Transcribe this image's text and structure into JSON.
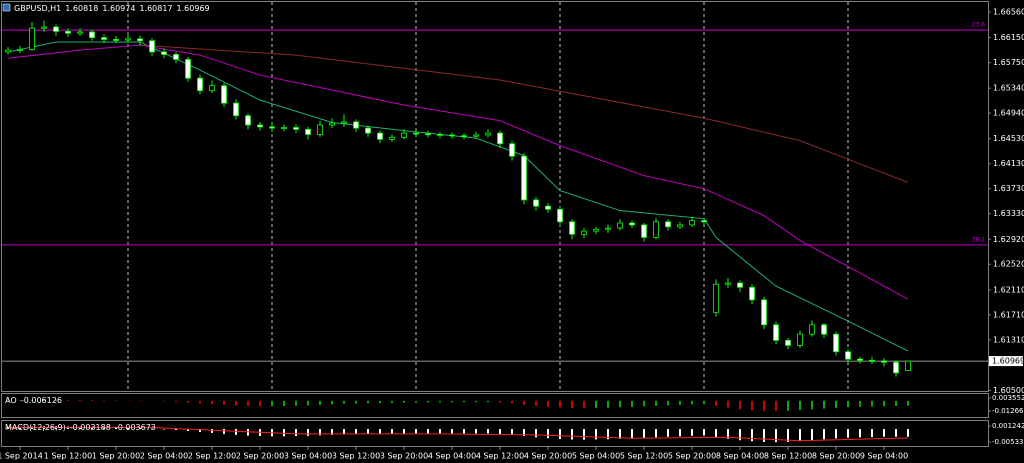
{
  "chart_data": {
    "type": "candlestick",
    "symbol": "GBPUSD,H1",
    "open": [
      1.6592,
      1.6595,
      1.6596,
      1.663,
      1.6632,
      1.6625,
      1.6622,
      1.6624,
      1.6615,
      1.6612,
      1.6611,
      1.6613,
      1.661,
      1.6592,
      1.6588,
      1.658,
      1.655,
      1.653,
      1.6538,
      1.651,
      1.649,
      1.6475,
      1.6472,
      1.647,
      1.6471,
      1.6468,
      1.646,
      1.6475,
      1.6478,
      1.648,
      1.647,
      1.6462,
      1.6452,
      1.6455,
      1.6462,
      1.6461,
      1.646,
      1.6459,
      1.6458,
      1.6457,
      1.6459,
      1.6462,
      1.6445,
      1.6425,
      1.6355,
      1.6345,
      1.634,
      1.632,
      1.63,
      1.6305,
      1.6308,
      1.631,
      1.6318,
      1.6315,
      1.6295,
      1.632,
      1.6312,
      1.6315,
      1.6322,
      1.6175,
      1.622,
      1.6222,
      1.6215,
      1.6195,
      1.6155,
      1.613,
      1.6122,
      1.614,
      1.6155,
      1.614,
      1.6112,
      1.61,
      1.6098,
      1.6097,
      1.6095,
      1.60818
    ],
    "high": [
      1.66,
      1.6602,
      1.664,
      1.6642,
      1.6636,
      1.663,
      1.663,
      1.6628,
      1.662,
      1.6618,
      1.662,
      1.6618,
      1.6614,
      1.6598,
      1.6592,
      1.6584,
      1.6556,
      1.6546,
      1.6542,
      1.6516,
      1.6494,
      1.648,
      1.6478,
      1.6476,
      1.6476,
      1.6472,
      1.6482,
      1.6486,
      1.6492,
      1.6484,
      1.6474,
      1.6466,
      1.646,
      1.6468,
      1.6466,
      1.6466,
      1.6464,
      1.6463,
      1.6462,
      1.6464,
      1.6468,
      1.6466,
      1.645,
      1.643,
      1.636,
      1.635,
      1.6344,
      1.6324,
      1.631,
      1.6312,
      1.6316,
      1.6324,
      1.6322,
      1.6318,
      1.6326,
      1.6324,
      1.632,
      1.6328,
      1.6326,
      1.6228,
      1.623,
      1.6226,
      1.622,
      1.62,
      1.616,
      1.6134,
      1.6146,
      1.6162,
      1.6158,
      1.6144,
      1.6116,
      1.6104,
      1.6104,
      1.6102,
      1.6098,
      1.60974
    ],
    "low": [
      1.6588,
      1.659,
      1.6594,
      1.6624,
      1.6618,
      1.6616,
      1.6618,
      1.661,
      1.6606,
      1.6606,
      1.6607,
      1.6602,
      1.6586,
      1.6582,
      1.6574,
      1.6544,
      1.6524,
      1.6526,
      1.6504,
      1.6484,
      1.6468,
      1.6466,
      1.6464,
      1.6465,
      1.6462,
      1.6452,
      1.6456,
      1.647,
      1.6472,
      1.6464,
      1.6456,
      1.6446,
      1.6448,
      1.6452,
      1.6456,
      1.6455,
      1.6454,
      1.6453,
      1.6452,
      1.6453,
      1.6455,
      1.6438,
      1.6418,
      1.6348,
      1.6338,
      1.6334,
      1.6314,
      1.6292,
      1.6294,
      1.63,
      1.6302,
      1.6306,
      1.631,
      1.6288,
      1.6292,
      1.6306,
      1.6308,
      1.6312,
      1.6316,
      1.6168,
      1.6214,
      1.6208,
      1.6188,
      1.6148,
      1.6124,
      1.6116,
      1.6118,
      1.6136,
      1.6134,
      1.6106,
      1.6094,
      1.6093,
      1.6092,
      1.6088,
      1.6072,
      1.60817
    ],
    "close": [
      1.6595,
      1.6596,
      1.663,
      1.6632,
      1.6625,
      1.6622,
      1.6624,
      1.6615,
      1.6612,
      1.6611,
      1.6613,
      1.661,
      1.6592,
      1.6588,
      1.658,
      1.655,
      1.653,
      1.6538,
      1.651,
      1.649,
      1.6475,
      1.6472,
      1.647,
      1.6471,
      1.6468,
      1.646,
      1.6475,
      1.6478,
      1.648,
      1.647,
      1.6462,
      1.6452,
      1.6455,
      1.6462,
      1.6461,
      1.646,
      1.6459,
      1.6458,
      1.6457,
      1.6459,
      1.6462,
      1.6445,
      1.6425,
      1.6355,
      1.6345,
      1.634,
      1.632,
      1.63,
      1.6305,
      1.6308,
      1.631,
      1.6318,
      1.6315,
      1.6295,
      1.632,
      1.6312,
      1.6315,
      1.6322,
      1.632,
      1.622,
      1.6222,
      1.6215,
      1.6195,
      1.6155,
      1.613,
      1.6122,
      1.614,
      1.6155,
      1.614,
      1.6112,
      1.61,
      1.6098,
      1.6097,
      1.6095,
      1.6078,
      1.60969
    ],
    "up_color": "#000000",
    "down_color": "#ffffff",
    "edge_color": "#00ff00",
    "ylim": [
      1.6049,
      1.6672
    ],
    "yticks": [
      {
        "value": 1.6656,
        "label": "1.66560"
      },
      {
        "value": 1.6615,
        "label": "1.66150"
      },
      {
        "value": 1.6575,
        "label": "1.65750"
      },
      {
        "value": 1.6534,
        "label": "1.65340"
      },
      {
        "value": 1.6494,
        "label": "1.64940"
      },
      {
        "value": 1.6453,
        "label": "1.64530"
      },
      {
        "value": 1.6413,
        "label": "1.64130"
      },
      {
        "value": 1.6373,
        "label": "1.63730"
      },
      {
        "value": 1.6333,
        "label": "1.63330"
      },
      {
        "value": 1.6292,
        "label": "1.62920"
      },
      {
        "value": 1.6252,
        "label": "1.62520"
      },
      {
        "value": 1.6211,
        "label": "1.62110"
      },
      {
        "value": 1.6171,
        "label": "1.61710"
      },
      {
        "value": 1.6131,
        "label": "1.61310"
      },
      {
        "value": 1.605,
        "label": "1.60500"
      }
    ],
    "xticks": [
      {
        "value": 1,
        "label": "1 Sep 2014"
      },
      {
        "value": 5,
        "label": "1 Sep 12:00"
      },
      {
        "value": 9,
        "label": "1 Sep 20:00"
      },
      {
        "value": 13,
        "label": "2 Sep 04:00"
      },
      {
        "value": 17,
        "label": "2 Sep 12:00"
      },
      {
        "value": 21,
        "label": "2 Sep 20:00"
      },
      {
        "value": 25,
        "label": "3 Sep 04:00"
      },
      {
        "value": 29,
        "label": "3 Sep 12:00"
      },
      {
        "value": 33,
        "label": "3 Sep 20:00"
      },
      {
        "value": 37,
        "label": "4 Sep 04:00"
      },
      {
        "value": 41,
        "label": "4 Sep 12:00"
      },
      {
        "value": 45,
        "label": "4 Sep 20:00"
      },
      {
        "value": 49,
        "label": "5 Sep 04:00"
      },
      {
        "value": 53,
        "label": "5 Sep 12:00"
      },
      {
        "value": 57,
        "label": "5 Sep 20:00"
      },
      {
        "value": 61,
        "label": "8 Sep 04:00"
      },
      {
        "value": 65,
        "label": "8 Sep 12:00"
      },
      {
        "value": 69,
        "label": "8 Sep 20:00"
      },
      {
        "value": 73,
        "label": "9 Sep 04:00"
      }
    ],
    "xgrid": [
      10,
      22,
      34,
      46,
      58,
      70
    ],
    "lines": [
      {
        "color": "#20b070",
        "x": [
          0,
          4,
          11,
          16,
          21,
          27,
          33,
          39,
          43,
          46,
          51,
          58,
          59,
          64,
          70,
          75
        ],
        "values": [
          1.6592,
          1.6608,
          1.6608,
          1.6563,
          1.6515,
          1.6479,
          1.6466,
          1.6454,
          1.6426,
          1.637,
          1.6338,
          1.6325,
          1.6295,
          1.6217,
          1.6161,
          1.6113
        ]
      },
      {
        "color": "#c000c0",
        "x": [
          0,
          6,
          11,
          16,
          21,
          33,
          41,
          46,
          53,
          58,
          63,
          66,
          71,
          75
        ],
        "values": [
          1.6582,
          1.6595,
          1.6603,
          1.6587,
          1.6555,
          1.6507,
          1.6482,
          1.6442,
          1.6394,
          1.6373,
          1.633,
          1.629,
          1.6238,
          1.6196
        ]
      },
      {
        "color": "#8b2a2a",
        "x": [
          11,
          24,
          41,
          58,
          66,
          75
        ],
        "values": [
          1.6603,
          1.6587,
          1.6547,
          1.6486,
          1.645,
          1.6383
        ]
      }
    ],
    "hlines": [
      {
        "value": 1.6627,
        "label": "23.6",
        "color": "#c000c0"
      },
      {
        "value": 1.6283,
        "label": "38.2",
        "color": "#c000c0"
      }
    ],
    "price_line_color": "#c0c0c0",
    "panels": [
      {
        "type": "bar",
        "name": "AO",
        "values": [
          0.0005,
          0.0008,
          0.001,
          0.0012,
          0.0013,
          0.0012,
          0.0011,
          0.001,
          0.0008,
          0.0006,
          0.0004,
          0.0002,
          -0.0002,
          -0.0008,
          -0.0015,
          -0.0025,
          -0.0035,
          -0.0042,
          -0.005,
          -0.0058,
          -0.0063,
          -0.0066,
          -0.0066,
          -0.0064,
          -0.006,
          -0.0056,
          -0.005,
          -0.0044,
          -0.0038,
          -0.0034,
          -0.0031,
          -0.0029,
          -0.0026,
          -0.0024,
          -0.0022,
          -0.002,
          -0.0019,
          -0.0018,
          -0.0017,
          -0.0016,
          -0.0016,
          -0.002,
          -0.003,
          -0.0048,
          -0.0062,
          -0.0074,
          -0.0084,
          -0.009,
          -0.0092,
          -0.009,
          -0.0086,
          -0.008,
          -0.0074,
          -0.0068,
          -0.0062,
          -0.0056,
          -0.005,
          -0.0044,
          -0.004,
          -0.006,
          -0.0085,
          -0.0105,
          -0.0118,
          -0.0126,
          -0.0128,
          -0.0124,
          -0.0116,
          -0.0106,
          -0.0096,
          -0.0088,
          -0.008,
          -0.0074,
          -0.007,
          -0.0067,
          -0.0064,
          -0.006126
        ],
        "up_color": "#00b000",
        "down_color": "#d00000",
        "ylim": [
          -0.0201,
          0.0085
        ],
        "yticks": [
          0.003552,
          -0.012666
        ]
      },
      {
        "type": "bar",
        "name": "MACD(12,26,9)",
        "values": [
          0.0008,
          0.0009,
          0.001,
          0.0011,
          0.0011,
          0.001,
          0.0009,
          0.0008,
          0.0007,
          0.0006,
          0.0005,
          0.0004,
          0.0002,
          -0.0001,
          -0.0004,
          -0.0008,
          -0.0012,
          -0.0016,
          -0.002,
          -0.0024,
          -0.0027,
          -0.0029,
          -0.003,
          -0.003,
          -0.0029,
          -0.0028,
          -0.0026,
          -0.0024,
          -0.0022,
          -0.0021,
          -0.002,
          -0.002,
          -0.0019,
          -0.0019,
          -0.0018,
          -0.0018,
          -0.0018,
          -0.0018,
          -0.0018,
          -0.0018,
          -0.0018,
          -0.002,
          -0.0023,
          -0.0029,
          -0.0034,
          -0.0038,
          -0.0041,
          -0.0043,
          -0.0044,
          -0.0043,
          -0.0042,
          -0.004,
          -0.0038,
          -0.0036,
          -0.0034,
          -0.0032,
          -0.003,
          -0.0028,
          -0.0027,
          -0.0033,
          -0.004,
          -0.0046,
          -0.005,
          -0.0053,
          -0.0054,
          -0.0053,
          -0.005,
          -0.0046,
          -0.0042,
          -0.0039,
          -0.0036,
          -0.0034,
          -0.0033,
          -0.0032,
          -0.0032,
          -0.003188
        ],
        "color": "#ffffff",
        "signal": {
          "color": "#ff2020",
          "x": [
            0,
            12,
            24,
            36,
            44,
            52,
            60,
            66,
            75
          ],
          "values": [
            0.0006,
            0.0006,
            -0.002,
            -0.002,
            -0.0024,
            -0.0038,
            -0.0034,
            -0.0048,
            -0.003673
          ]
        },
        "ylim": [
          -0.006981,
          0.003297
        ],
        "yticks": [
          0.001242,
          -0.005337
        ]
      }
    ]
  }
}
